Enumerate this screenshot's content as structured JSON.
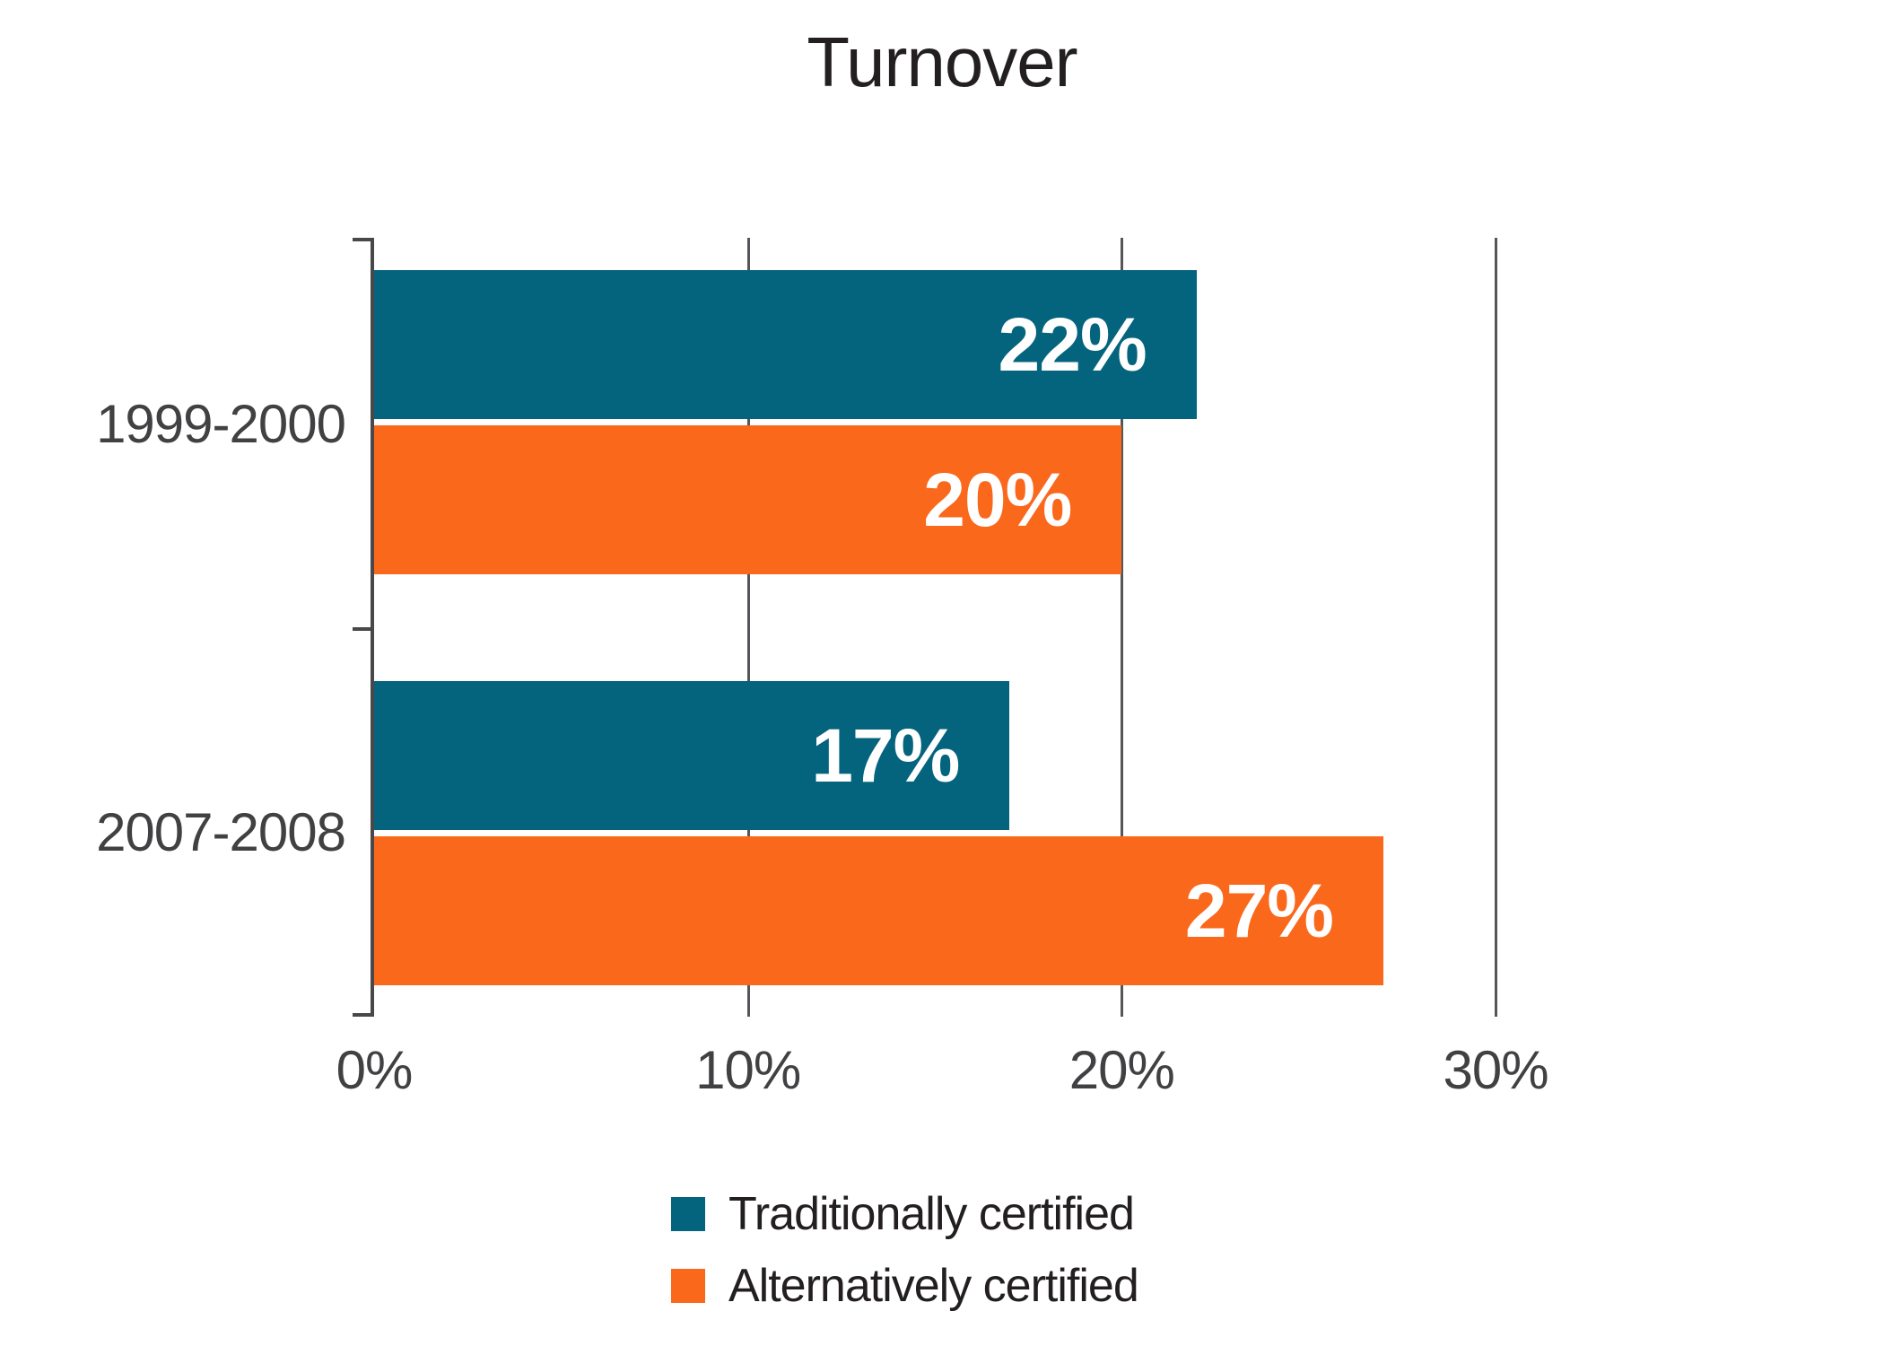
{
  "chart_data": {
    "type": "bar",
    "orientation": "horizontal",
    "title": "Turnover",
    "categories": [
      "1999-2000",
      "2007-2008"
    ],
    "series": [
      {
        "name": "Traditionally certified",
        "color": "#04647d",
        "values": [
          22,
          17
        ]
      },
      {
        "name": "Alternatively certified",
        "color": "#fa681c",
        "values": [
          20,
          27
        ]
      }
    ],
    "value_labels": [
      [
        "22%",
        "20%"
      ],
      [
        "17%",
        "27%"
      ]
    ],
    "xlim": [
      0,
      36
    ],
    "x_ticks": [
      {
        "value": 0,
        "label": "0%"
      },
      {
        "value": 10,
        "label": "10%"
      },
      {
        "value": 20,
        "label": "20%"
      },
      {
        "value": 30,
        "label": "30%"
      }
    ],
    "gridline_values": [
      10,
      20,
      30
    ],
    "grid": "vertical-only",
    "legend_position": "bottom",
    "axis_color": "#48484a",
    "label_color": "#414042"
  }
}
